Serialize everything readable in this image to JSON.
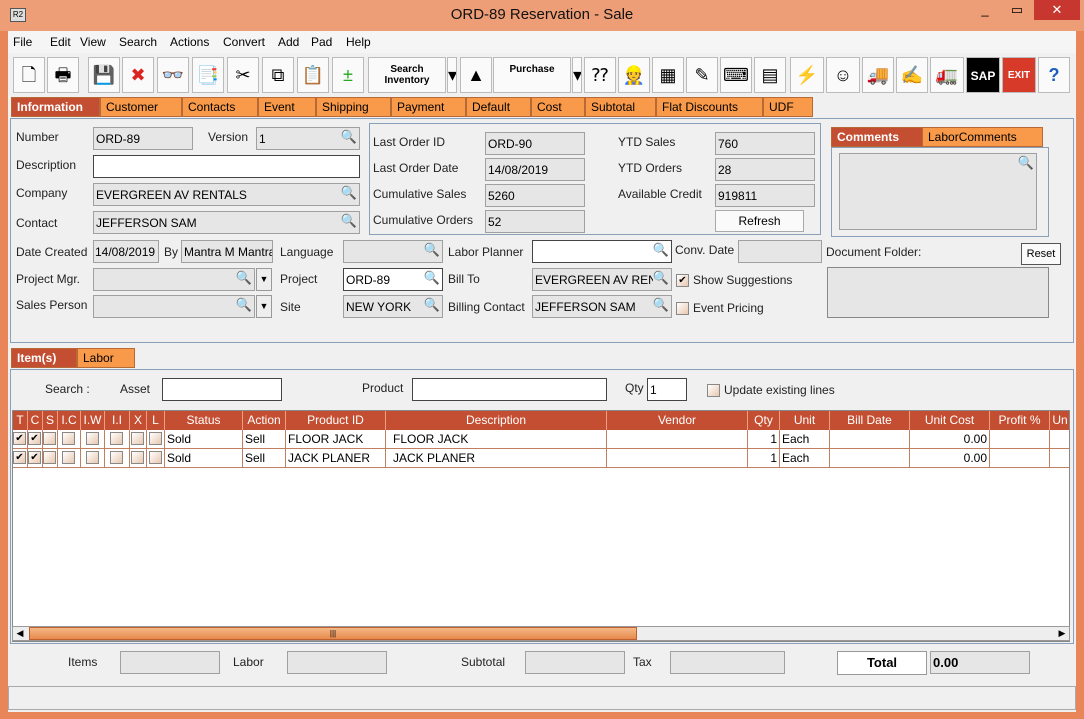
{
  "window": {
    "title": "ORD-89 Reservation - Sale",
    "app_icon": "R2"
  },
  "menu": [
    "File",
    "Edit",
    "View",
    "Search",
    "Actions",
    "Convert",
    "Add",
    "Pad",
    "Help"
  ],
  "toolbar": [
    {
      "name": "new-document",
      "g": "🗋"
    },
    {
      "name": "print",
      "g": "🖶"
    },
    {
      "name": "save",
      "g": "💾"
    },
    {
      "name": "delete",
      "g": "✖"
    },
    {
      "name": "binoculars",
      "g": "👓"
    },
    {
      "name": "copy-to",
      "g": "📑"
    },
    {
      "name": "cut",
      "g": "✂"
    },
    {
      "name": "copy",
      "g": "⧉"
    },
    {
      "name": "paste",
      "g": "📋"
    },
    {
      "name": "add-remove",
      "g": "±"
    },
    {
      "name": "search-inventory",
      "label": "Search Inventory"
    },
    {
      "name": "search-inventory-dropdown",
      "g": "▾"
    },
    {
      "name": "shapes",
      "g": "▲"
    },
    {
      "name": "purchase",
      "label": "Purchase"
    },
    {
      "name": "purchase-dropdown",
      "g": "▾"
    },
    {
      "name": "availability",
      "g": "⁇"
    },
    {
      "name": "worker",
      "g": "👷"
    },
    {
      "name": "calendar",
      "g": "▦"
    },
    {
      "name": "notepad",
      "g": "✎"
    },
    {
      "name": "key",
      "g": "⌨"
    },
    {
      "name": "stacks",
      "g": "▤"
    },
    {
      "name": "lightning",
      "g": "⚡"
    },
    {
      "name": "smiley",
      "g": "☺"
    },
    {
      "name": "truck-in",
      "g": "🚚"
    },
    {
      "name": "edit",
      "g": "✍"
    },
    {
      "name": "truck-out",
      "g": "🚛"
    },
    {
      "name": "sap",
      "label": "SAP"
    },
    {
      "name": "exit",
      "label": "EXIT"
    },
    {
      "name": "help",
      "g": "?"
    }
  ],
  "tabs": [
    "Information",
    "Customer",
    "Contacts",
    "Event",
    "Shipping",
    "Payment",
    "Default",
    "Cost",
    "Subtotal",
    "Flat Discounts",
    "UDF"
  ],
  "info": {
    "number_label": "Number",
    "number": "ORD-89",
    "version_label": "Version",
    "version": "1",
    "description_label": "Description",
    "description": "",
    "company_label": "Company",
    "company": "EVERGREEN AV RENTALS",
    "contact_label": "Contact",
    "contact": "JEFFERSON SAM",
    "date_created_label": "Date Created",
    "date_created": "14/08/2019",
    "by_label": "By",
    "by": "Mantra M Mantra",
    "language_label": "Language",
    "language": "",
    "labor_planner_label": "Labor Planner",
    "labor_planner": "",
    "conv_date_label": "Conv. Date",
    "conv_date": "",
    "document_folder_label": "Document Folder:",
    "reset_label": "Reset",
    "project_mgr_label": "Project Mgr.",
    "project_mgr": "",
    "project_label": "Project",
    "project": "ORD-89",
    "bill_to_label": "Bill To",
    "bill_to": "EVERGREEN AV RENTALS",
    "show_suggestions_label": "Show Suggestions",
    "show_suggestions": true,
    "sales_person_label": "Sales Person",
    "sales_person": "",
    "site_label": "Site",
    "site": "NEW YORK",
    "billing_contact_label": "Billing Contact",
    "billing_contact": "JEFFERSON SAM",
    "event_pricing_label": "Event Pricing",
    "event_pricing": false,
    "last_order_id_label": "Last Order ID",
    "last_order_id": "ORD-90",
    "last_order_date_label": "Last Order Date",
    "last_order_date": "14/08/2019",
    "cumulative_sales_label": "Cumulative Sales",
    "cumulative_sales": "5260",
    "cumulative_orders_label": "Cumulative Orders",
    "cumulative_orders": "52",
    "ytd_sales_label": "YTD Sales",
    "ytd_sales": "760",
    "ytd_orders_label": "YTD Orders",
    "ytd_orders": "28",
    "available_credit_label": "Available Credit",
    "available_credit": "919811",
    "refresh_label": "Refresh",
    "comment_tabs": [
      "Comments",
      "LaborComments"
    ]
  },
  "items_tabs": [
    "Item(s)",
    "Labor"
  ],
  "search": {
    "search_label": "Search :",
    "asset_label": "Asset",
    "asset": "",
    "product_label": "Product",
    "product": "",
    "qty_label": "Qty",
    "qty": "1",
    "update_label": "Update existing lines"
  },
  "grid": {
    "columns": [
      "T",
      "C",
      "S",
      "I.C",
      "I.W",
      "I.I",
      "X",
      "L",
      "Status",
      "Action",
      "Product ID",
      "Description",
      "Vendor",
      "Qty",
      "Unit",
      "Bill Date",
      "Unit Cost",
      "Profit %",
      "Un"
    ],
    "rows": [
      {
        "T": true,
        "C": true,
        "S": false,
        "IC": false,
        "IW": false,
        "II": false,
        "X": false,
        "L": false,
        "status": "Sold",
        "action": "Sell",
        "product_id": "FLOOR JACK",
        "description": "FLOOR JACK",
        "vendor": "",
        "qty": "1",
        "unit": "Each",
        "bill_date": "",
        "unit_cost": "0.00",
        "profit": ""
      },
      {
        "T": true,
        "C": true,
        "S": false,
        "IC": false,
        "IW": false,
        "II": false,
        "X": false,
        "L": false,
        "status": "Sold",
        "action": "Sell",
        "product_id": "JACK PLANER",
        "description": "JACK PLANER",
        "vendor": "",
        "qty": "1",
        "unit": "Each",
        "bill_date": "",
        "unit_cost": "0.00",
        "profit": ""
      }
    ]
  },
  "footer": {
    "items_label": "Items",
    "items": "",
    "labor_label": "Labor",
    "labor": "",
    "subtotal_label": "Subtotal",
    "subtotal": "",
    "tax_label": "Tax",
    "tax": "",
    "total_label": "Total",
    "total": "0.00"
  },
  "colors": {
    "accent": "#c44e32",
    "tab": "#f99a4a",
    "frame": "#e8865a"
  }
}
